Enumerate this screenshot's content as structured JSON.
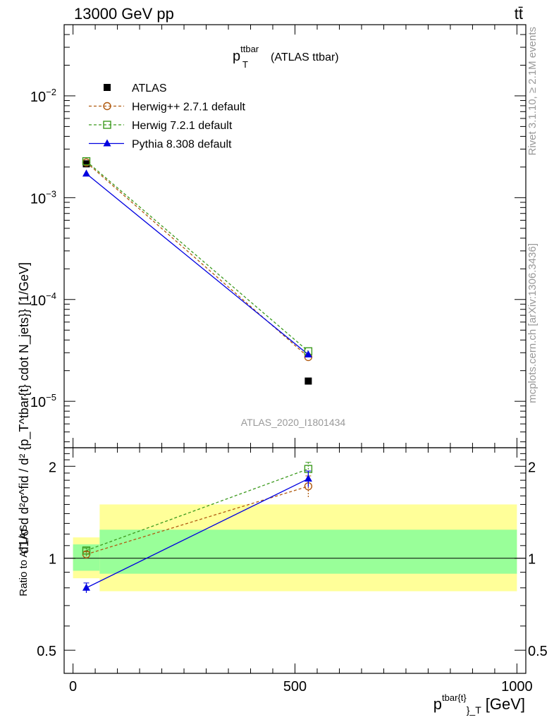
{
  "header": {
    "left": "13000 GeV pp",
    "right": "tt̄"
  },
  "side_labels": {
    "rivet": "Rivet 3.1.10, ≥ 2.1M events",
    "mcplots": "mcplots.cern.ch [arXiv:1306.3436]"
  },
  "watermark": "ATLAS_2020_I1801434",
  "colors": {
    "herwigpp": "#b05a10",
    "herwig7": "#3c9a1e",
    "pythia": "#0000e0",
    "band_inner": "#99ff99",
    "band_outer": "#ffff99"
  },
  "chart_data": [
    {
      "type": "line",
      "panel": "main",
      "title_main": "p",
      "title_sup": "ttbar",
      "title_sub": "T",
      "title_rest": "(ATLAS ttbar)",
      "ylabel": "d\\frac{1}{\\sigma}d\\frac{d^2\\sigma^{fid}}{d^2 {p_T^{tbar{t}}} cdot N_{jets}}} [1/GeV]",
      "ylabel_display": "d1/σ d d²σ^fid / d² {p_T^tbar{t} cdot N_jets}} [1/GeV]",
      "yscale": "log",
      "ylim": [
        3.5e-06,
        0.05
      ],
      "xlim": [
        -20,
        1020
      ],
      "yticks": [
        {
          "value": 1e-05,
          "base": "10",
          "exp": "−5"
        },
        {
          "value": 0.0001,
          "base": "10",
          "exp": "−4"
        },
        {
          "value": 0.001,
          "base": "10",
          "exp": "−3"
        },
        {
          "value": 0.01,
          "base": "10",
          "exp": "−2"
        }
      ],
      "legend_position": "top-left",
      "series": [
        {
          "name": "ATLAS",
          "marker": "filled-square",
          "x": [
            30,
            530
          ],
          "y": [
            0.00215,
            1.58e-05
          ]
        },
        {
          "name": "Herwig++ 2.7.1 default",
          "marker": "open-circle",
          "x": [
            30,
            530
          ],
          "y": [
            0.00222,
            2.72e-05
          ]
        },
        {
          "name": "Herwig 7.2.1 default",
          "marker": "open-square",
          "x": [
            30,
            530
          ],
          "y": [
            0.00228,
            3.1e-05
          ]
        },
        {
          "name": "Pythia 8.308 default",
          "marker": "filled-triangle",
          "x": [
            30,
            530
          ],
          "y": [
            0.00172,
            2.88e-05
          ]
        }
      ]
    },
    {
      "type": "line",
      "panel": "ratio",
      "ylabel": "Ratio to ATLAS",
      "yscale": "log",
      "ylim": [
        0.42,
        2.3
      ],
      "xlim": [
        -20,
        1020
      ],
      "xlabel_main": "p",
      "xlabel_sup": "tbar{t}",
      "xlabel_sub": "}_T",
      "xlabel_unit": "[GeV]",
      "yticks": [
        0.5,
        1,
        2
      ],
      "yticklabels": [
        "0.5",
        "1",
        "2"
      ],
      "xticks": [
        0,
        500,
        1000
      ],
      "xticklabels": [
        "0",
        "500",
        "1000"
      ],
      "bands": [
        {
          "x": [
            0,
            60
          ],
          "inner": [
            0.91,
            1.11
          ],
          "outer": [
            0.86,
            1.17
          ]
        },
        {
          "x": [
            60,
            1000
          ],
          "inner": [
            0.89,
            1.24
          ],
          "outer": [
            0.78,
            1.5
          ]
        }
      ],
      "series": [
        {
          "name": "Herwig++ 2.7.1 default",
          "x": [
            30,
            530
          ],
          "y": [
            1.03,
            1.72
          ],
          "err": [
            0.02,
            0.14
          ]
        },
        {
          "name": "Herwig 7.2.1 default",
          "x": [
            30,
            530
          ],
          "y": [
            1.06,
            1.96
          ],
          "err": [
            0.02,
            0.1
          ]
        },
        {
          "name": "Pythia 8.308 default",
          "x": [
            30,
            530
          ],
          "y": [
            0.8,
            1.82
          ],
          "err": [
            0.03,
            0.11
          ]
        }
      ]
    }
  ]
}
